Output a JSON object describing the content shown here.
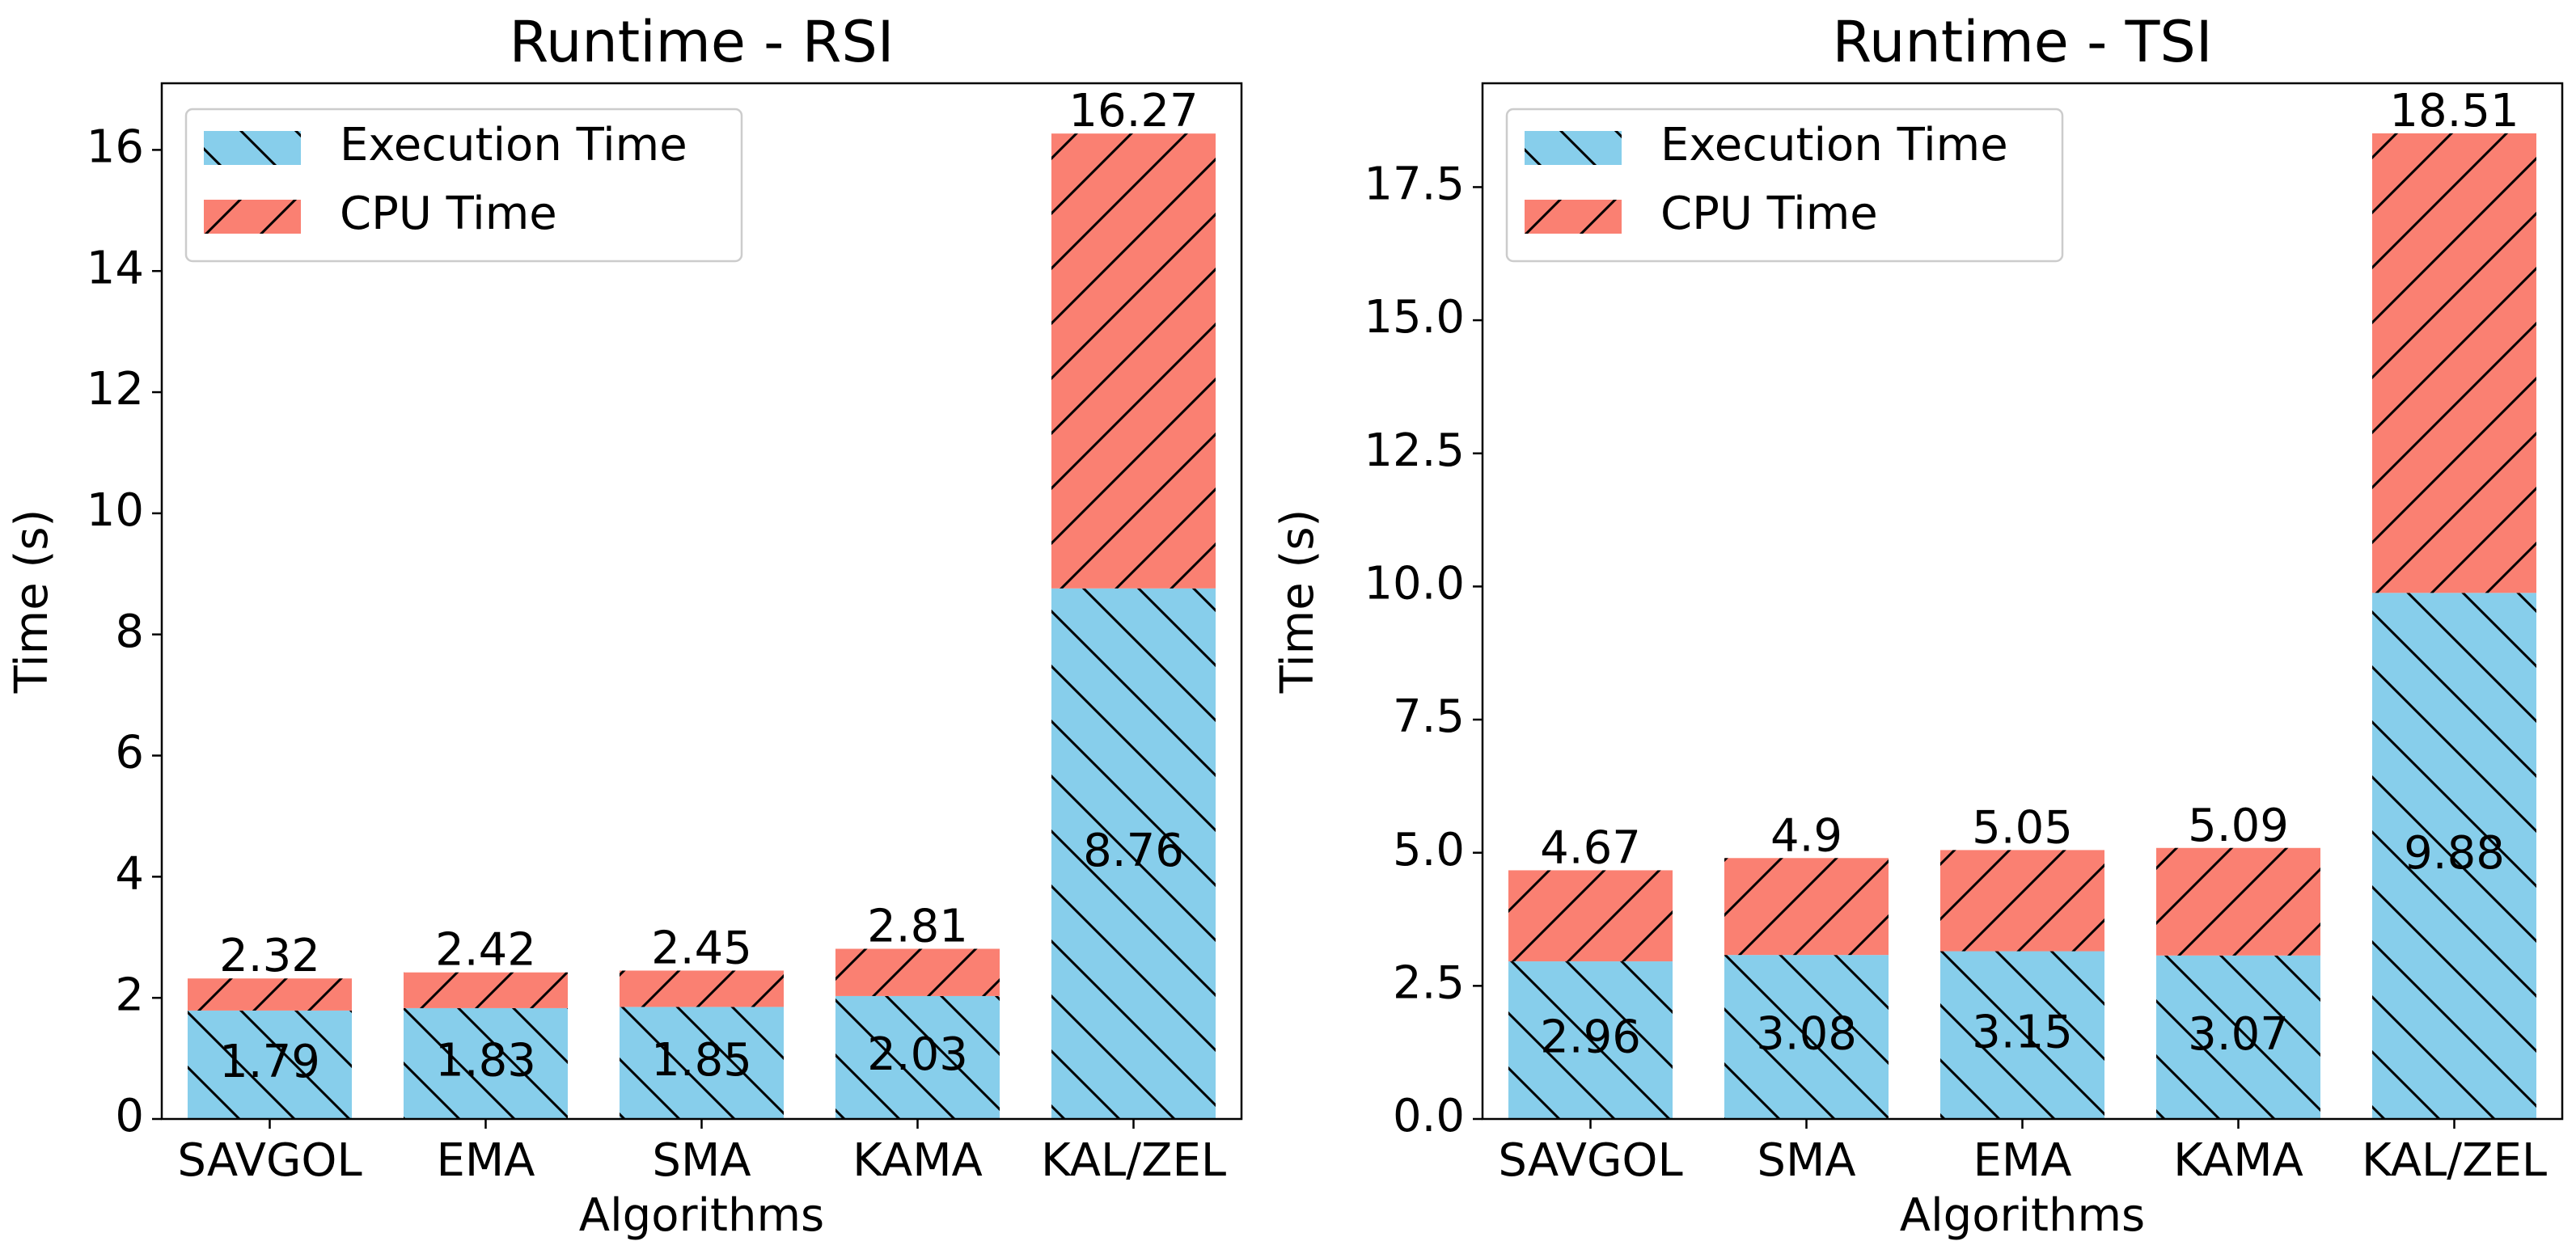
{
  "chart_data": [
    {
      "type": "bar",
      "stacked": true,
      "title": "Runtime - RSI",
      "xlabel": "Algorithms",
      "ylabel": "Time (s)",
      "categories": [
        "SAVGOL",
        "EMA",
        "SMA",
        "KAMA",
        "KAL/ZEL"
      ],
      "series": [
        {
          "name": "Execution Time",
          "values": [
            1.79,
            1.83,
            1.85,
            2.03,
            8.76
          ],
          "color": "#87CEEB",
          "hatch": "\\"
        },
        {
          "name": "CPU Time",
          "values": [
            0.53,
            0.59,
            0.6,
            0.78,
            7.51
          ],
          "color": "#FA8072",
          "hatch": "/"
        }
      ],
      "execution_labels": [
        "1.79",
        "1.83",
        "1.85",
        "2.03",
        "8.76"
      ],
      "total_labels": [
        "2.32",
        "2.42",
        "2.45",
        "2.81",
        "16.27"
      ],
      "ylim": [
        0,
        17.1
      ],
      "yticks": [
        0,
        2,
        4,
        6,
        8,
        10,
        12,
        14,
        16
      ],
      "ytick_labels": [
        "0",
        "2",
        "4",
        "6",
        "8",
        "10",
        "12",
        "14",
        "16"
      ],
      "legend": "top-left",
      "grid": false
    },
    {
      "type": "bar",
      "stacked": true,
      "title": "Runtime - TSI",
      "xlabel": "Algorithms",
      "ylabel": "Time (s)",
      "categories": [
        "SAVGOL",
        "SMA",
        "EMA",
        "KAMA",
        "KAL/ZEL"
      ],
      "series": [
        {
          "name": "Execution Time",
          "values": [
            2.96,
            3.08,
            3.15,
            3.07,
            9.88
          ],
          "color": "#87CEEB",
          "hatch": "\\"
        },
        {
          "name": "CPU Time",
          "values": [
            1.71,
            1.82,
            1.9,
            2.02,
            8.63
          ],
          "color": "#FA8072",
          "hatch": "/"
        }
      ],
      "execution_labels": [
        "2.96",
        "3.08",
        "3.15",
        "3.07",
        "9.88"
      ],
      "total_labels": [
        "4.67",
        "4.9",
        "5.05",
        "5.09",
        "18.51"
      ],
      "ylim": [
        0,
        19.45
      ],
      "yticks": [
        0,
        2.5,
        5,
        7.5,
        10,
        12.5,
        15,
        17.5
      ],
      "ytick_labels": [
        "0.0",
        "2.5",
        "5.0",
        "7.5",
        "10.0",
        "12.5",
        "15.0",
        "17.5"
      ],
      "legend": "top-left",
      "grid": false
    }
  ]
}
